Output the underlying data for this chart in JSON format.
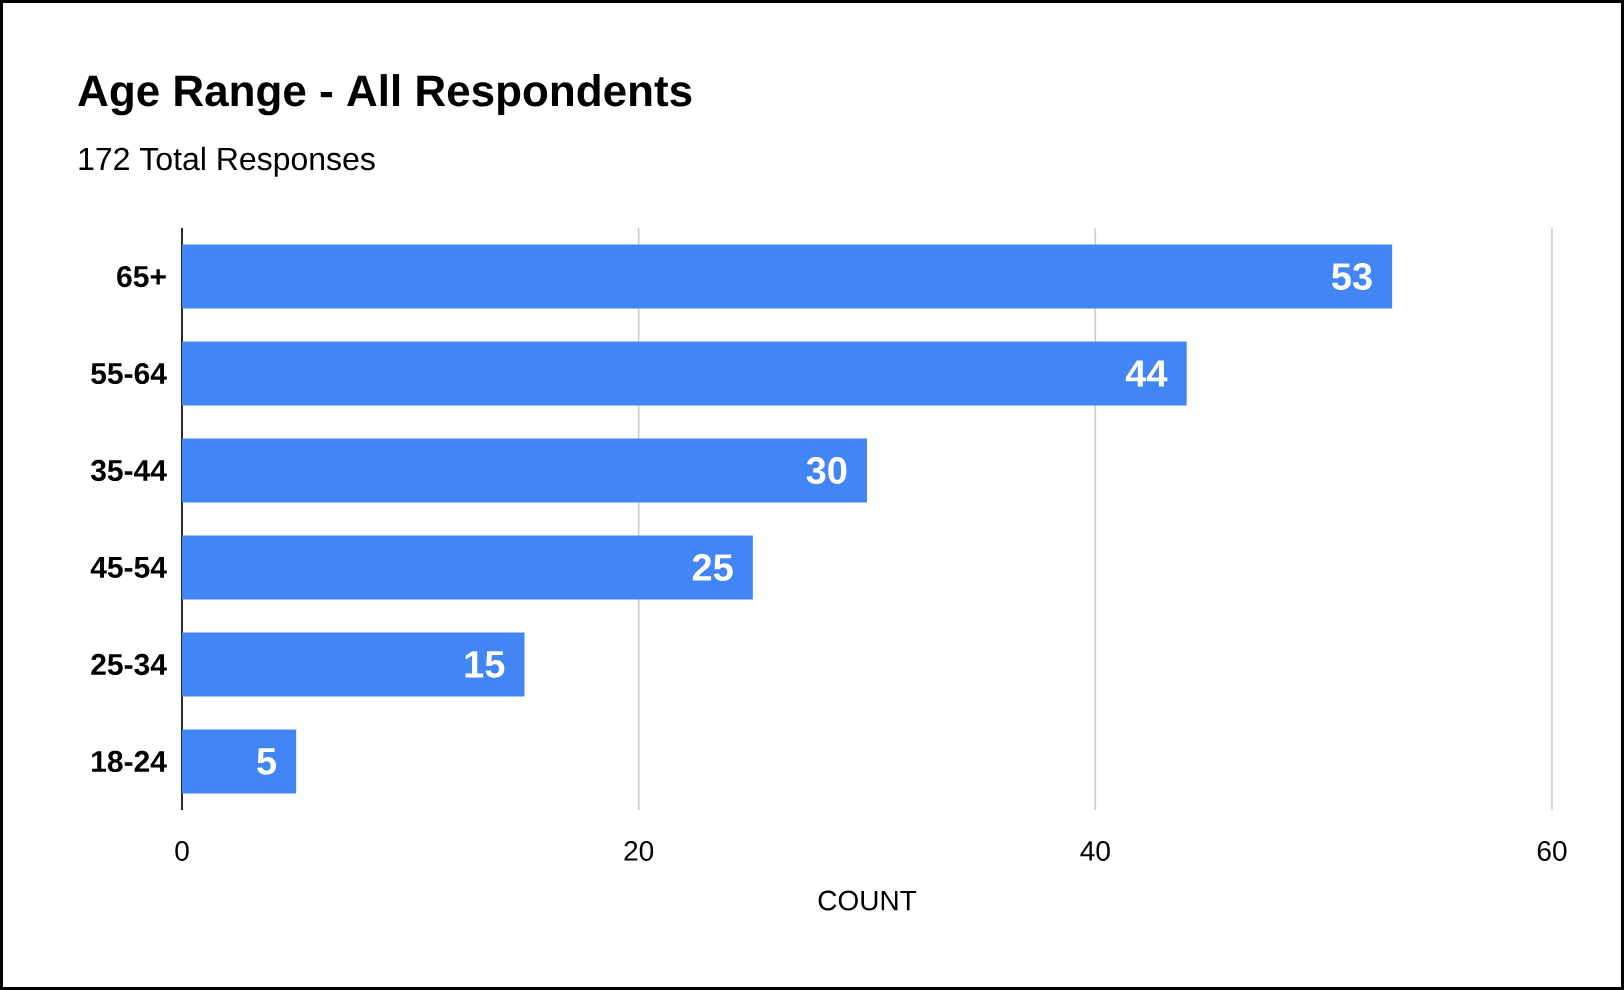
{
  "chart_data": {
    "type": "bar",
    "orientation": "horizontal",
    "title": "Age Range - All Respondents",
    "subtitle": "172 Total Responses",
    "xlabel": "COUNT",
    "categories": [
      "65+",
      "55-64",
      "35-44",
      "45-54",
      "25-34",
      "18-24"
    ],
    "values": [
      53,
      44,
      30,
      25,
      15,
      5
    ],
    "color": "#4285f4",
    "xlim": [
      0,
      60
    ],
    "xticks": [
      0,
      20,
      40,
      60
    ],
    "grid": "x",
    "data_labels": true
  }
}
